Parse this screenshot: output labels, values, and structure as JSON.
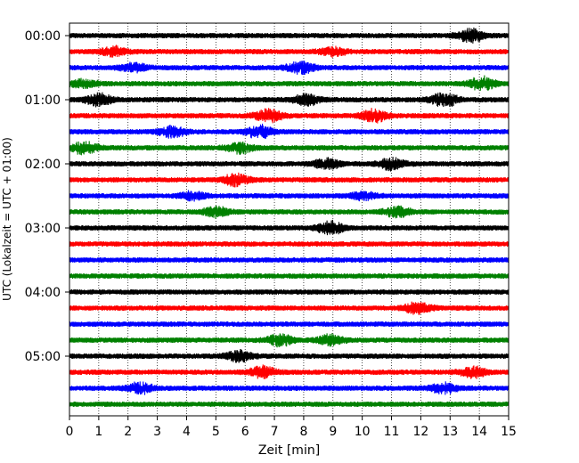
{
  "chart_data": {
    "type": "line",
    "chart_kind": "helicorder",
    "xlabel": "Zeit  [min]",
    "ylabel": "UTC (Lokalzeit = UTC + 01:00)",
    "xlim": [
      0,
      15
    ],
    "x_ticks": [
      0,
      1,
      2,
      3,
      4,
      5,
      6,
      7,
      8,
      9,
      10,
      11,
      12,
      13,
      14,
      15
    ],
    "x_tick_labels": [
      "0",
      "1",
      "2",
      "3",
      "4",
      "5",
      "6",
      "7",
      "8",
      "9",
      "10",
      "11",
      "12",
      "13",
      "14",
      "15"
    ],
    "y_ticks": [
      {
        "row": 0,
        "label": "00:00"
      },
      {
        "row": 4,
        "label": "01:00"
      },
      {
        "row": 8,
        "label": "02:00"
      },
      {
        "row": 12,
        "label": "03:00"
      },
      {
        "row": 16,
        "label": "04:00"
      },
      {
        "row": 20,
        "label": "05:00"
      }
    ],
    "grid": "vertical dotted at each minute",
    "row_colors": [
      "#000000",
      "#ff0000",
      "#0000ff",
      "#008000"
    ],
    "rows": [
      {
        "index": 0,
        "color": "#000000",
        "bursts": [
          [
            13.7,
            1.6
          ]
        ]
      },
      {
        "index": 1,
        "color": "#ff0000",
        "bursts": [
          [
            1.5,
            1.2
          ],
          [
            9.0,
            1.0
          ]
        ]
      },
      {
        "index": 2,
        "color": "#0000ff",
        "bursts": [
          [
            2.2,
            1.0
          ],
          [
            7.9,
            1.5
          ]
        ]
      },
      {
        "index": 3,
        "color": "#008000",
        "bursts": [
          [
            0.5,
            1.0
          ],
          [
            14.1,
            1.6
          ]
        ]
      },
      {
        "index": 4,
        "color": "#000000",
        "bursts": [
          [
            1.0,
            1.5
          ],
          [
            8.1,
            1.3
          ],
          [
            12.8,
            1.8
          ]
        ]
      },
      {
        "index": 5,
        "color": "#ff0000",
        "bursts": [
          [
            6.8,
            1.6
          ],
          [
            10.4,
            1.5
          ]
        ]
      },
      {
        "index": 6,
        "color": "#0000ff",
        "bursts": [
          [
            3.5,
            1.4
          ],
          [
            6.5,
            1.6
          ]
        ]
      },
      {
        "index": 7,
        "color": "#008000",
        "bursts": [
          [
            0.5,
            1.5
          ],
          [
            5.8,
            1.3
          ]
        ]
      },
      {
        "index": 8,
        "color": "#000000",
        "bursts": [
          [
            8.8,
            1.3
          ],
          [
            11.0,
            1.4
          ]
        ]
      },
      {
        "index": 9,
        "color": "#ff0000",
        "bursts": [
          [
            5.7,
            1.4
          ]
        ]
      },
      {
        "index": 10,
        "color": "#0000ff",
        "bursts": [
          [
            4.2,
            1.0
          ],
          [
            10.0,
            1.0
          ]
        ]
      },
      {
        "index": 11,
        "color": "#008000",
        "bursts": [
          [
            5.0,
            1.2
          ],
          [
            11.2,
            1.2
          ]
        ]
      },
      {
        "index": 12,
        "color": "#000000",
        "bursts": [
          [
            8.9,
            1.6
          ]
        ]
      },
      {
        "index": 13,
        "color": "#ff0000",
        "bursts": []
      },
      {
        "index": 14,
        "color": "#0000ff",
        "bursts": []
      },
      {
        "index": 15,
        "color": "#008000",
        "bursts": []
      },
      {
        "index": 16,
        "color": "#000000",
        "bursts": []
      },
      {
        "index": 17,
        "color": "#ff0000",
        "bursts": [
          [
            11.9,
            1.4
          ]
        ]
      },
      {
        "index": 18,
        "color": "#0000ff",
        "bursts": []
      },
      {
        "index": 19,
        "color": "#008000",
        "bursts": [
          [
            7.2,
            1.5
          ],
          [
            8.9,
            1.3
          ]
        ]
      },
      {
        "index": 20,
        "color": "#000000",
        "bursts": [
          [
            5.8,
            1.5
          ]
        ]
      },
      {
        "index": 21,
        "color": "#ff0000",
        "bursts": [
          [
            6.6,
            1.4
          ],
          [
            13.8,
            1.3
          ]
        ]
      },
      {
        "index": 22,
        "color": "#0000ff",
        "bursts": [
          [
            2.4,
            1.3
          ],
          [
            12.8,
            1.2
          ]
        ]
      },
      {
        "index": 23,
        "color": "#008000",
        "bursts": []
      }
    ]
  }
}
